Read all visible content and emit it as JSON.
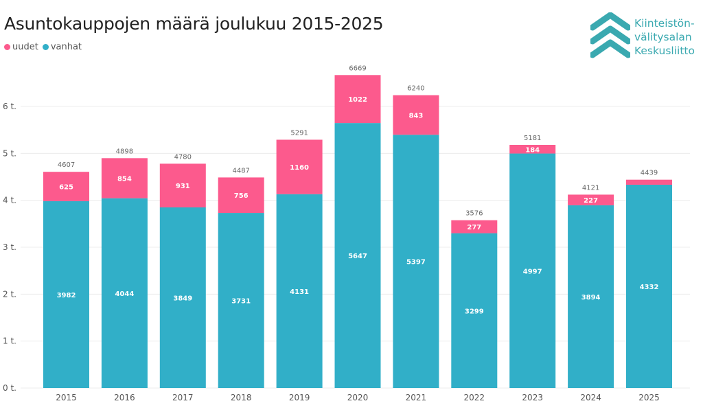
{
  "header": {
    "title": "Asuntokauppojen määrä joulukuu 2015-2025"
  },
  "logo": {
    "lines": [
      "Kiinteistön-",
      "välitysalan",
      "Keskusliitto"
    ],
    "icon": "chevrons-up-icon",
    "color": "#3aa9b0"
  },
  "chart_data": {
    "type": "bar",
    "stacked": true,
    "title": "Asuntokauppojen määrä joulukuu 2015-2025",
    "xlabel": "",
    "ylabel": "",
    "ylim": [
      0,
      7000
    ],
    "yticks": [
      0,
      1000,
      2000,
      3000,
      4000,
      5000,
      6000
    ],
    "ytick_labels": [
      "0 t.",
      "1 t.",
      "2 t.",
      "3 t.",
      "4 t.",
      "5 t.",
      "6 t."
    ],
    "grid": true,
    "legend_position": "top-left",
    "categories": [
      "2015",
      "2016",
      "2017",
      "2018",
      "2019",
      "2020",
      "2021",
      "2022",
      "2023",
      "2024",
      "2025"
    ],
    "series": [
      {
        "name": "vanhat",
        "color": "#31afc8",
        "values": [
          3982,
          4044,
          3849,
          3731,
          4131,
          5647,
          5397,
          3299,
          4997,
          3894,
          4332
        ],
        "labels": [
          "3982",
          "4044",
          "3849",
          "3731",
          "4131",
          "5647",
          "5397",
          "3299",
          "4997",
          "3894",
          "4332"
        ]
      },
      {
        "name": "uudet",
        "color": "#fc5a8d",
        "values": [
          625,
          854,
          931,
          756,
          1160,
          1022,
          843,
          277,
          184,
          227,
          107
        ],
        "labels": [
          "625",
          "854",
          "931",
          "756",
          "1160",
          "1022",
          "843",
          "277",
          "184",
          "227",
          ""
        ]
      }
    ],
    "totals": [
      4607,
      4898,
      4780,
      4487,
      5291,
      6669,
      6240,
      3576,
      5181,
      4121,
      4439
    ],
    "total_labels": [
      "4607",
      "4898",
      "4780",
      "4487",
      "5291",
      "6669",
      "6240",
      "3576",
      "5181",
      "4121",
      "4439"
    ]
  }
}
